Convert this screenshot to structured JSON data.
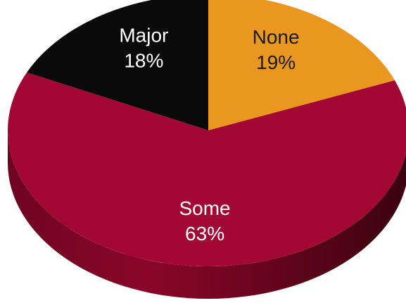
{
  "chart_data": {
    "type": "pie",
    "style": "3d",
    "title": "",
    "slices": [
      {
        "label": "None",
        "value": 19,
        "display": "19%",
        "color": "#E9971E",
        "text_color": "#1a1a1a"
      },
      {
        "label": "Some",
        "value": 63,
        "display": "63%",
        "color": "#A30834",
        "text_color": "#ffffff"
      },
      {
        "label": "Major",
        "value": 18,
        "display": "18%",
        "color": "#0a0a0a",
        "text_color": "#ffffff"
      }
    ]
  }
}
